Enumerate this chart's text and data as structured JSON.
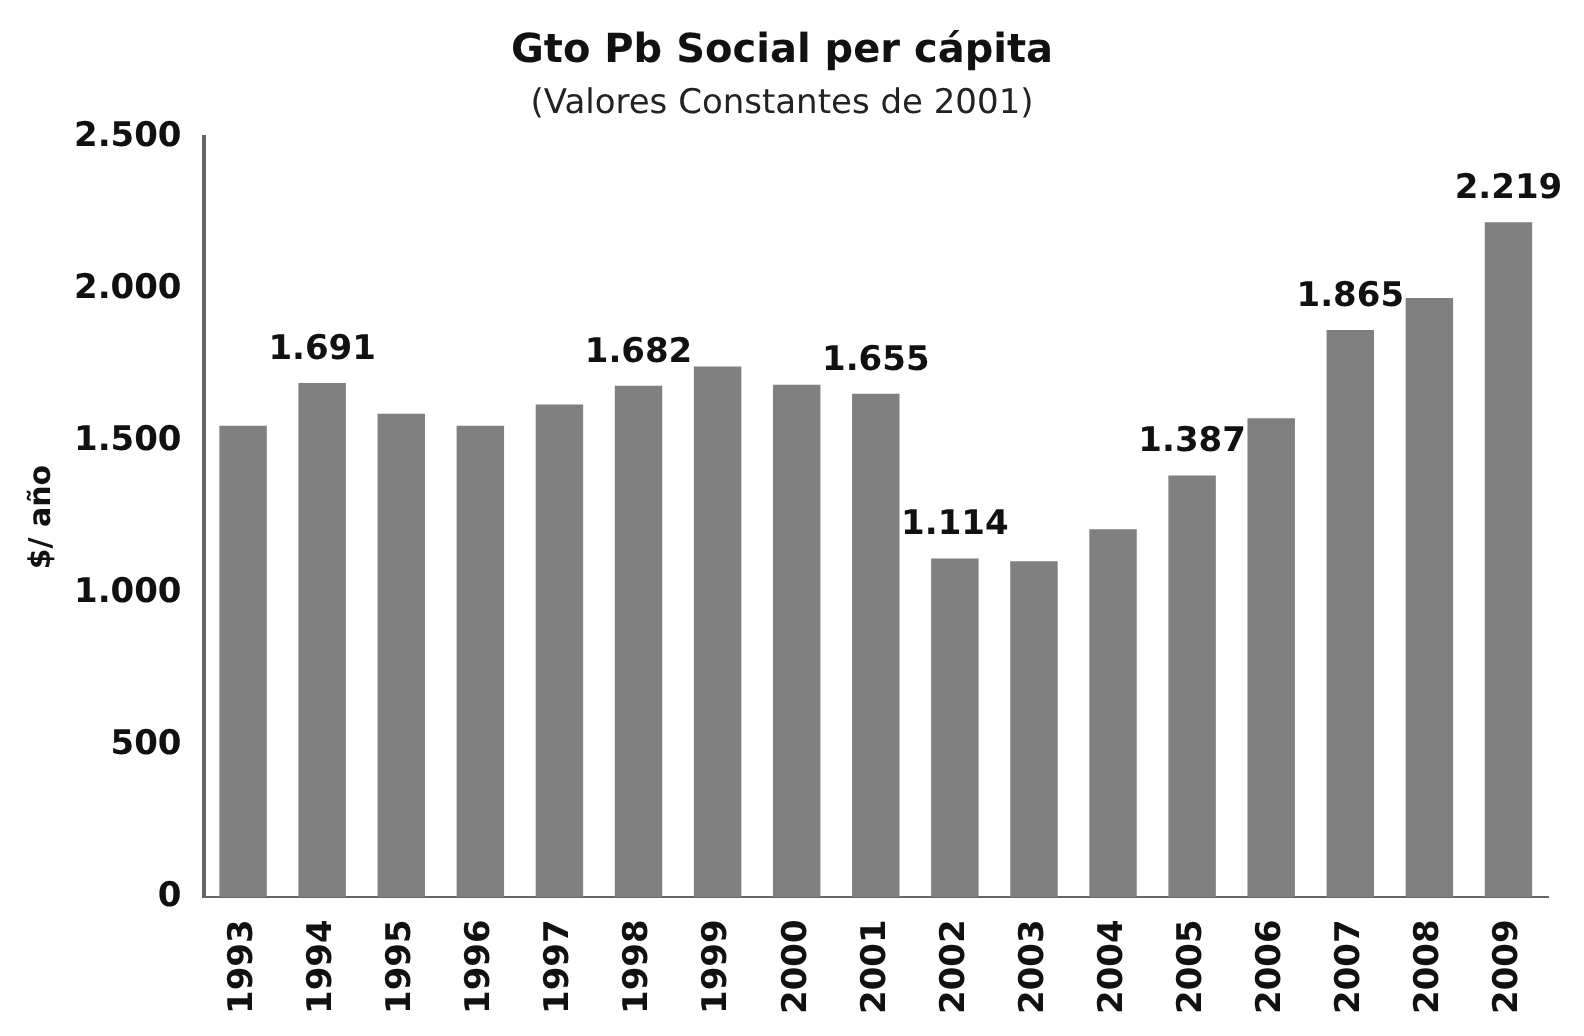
{
  "chart_data": {
    "type": "bar",
    "title": "Gto Pb Social per cápita",
    "subtitle": "(Valores Constantes de 2001)",
    "ylabel": "$/ año",
    "categories": [
      "1993",
      "1994",
      "1995",
      "1996",
      "1997",
      "1998",
      "1999",
      "2000",
      "2001",
      "2002",
      "2003",
      "2004",
      "2005",
      "2006",
      "2007",
      "2008",
      "2009"
    ],
    "values": [
      1550,
      1691,
      1590,
      1550,
      1620,
      1682,
      1745,
      1685,
      1655,
      1114,
      1105,
      1210,
      1387,
      1575,
      1865,
      1970,
      2219
    ],
    "value_labels": [
      null,
      "1.691",
      null,
      null,
      null,
      "1.682",
      null,
      null,
      "1.655",
      "1.114",
      null,
      null,
      "1.387",
      null,
      "1.865",
      null,
      "2.219"
    ],
    "color": "#808080",
    "ylim": [
      0,
      2500
    ],
    "yticks": [
      {
        "value": 0,
        "label": "0"
      },
      {
        "value": 500,
        "label": "500"
      },
      {
        "value": 1000,
        "label": "1.000"
      },
      {
        "value": 1500,
        "label": "1.500"
      },
      {
        "value": 2000,
        "label": "2.000"
      },
      {
        "value": 2500,
        "label": "2.500"
      }
    ],
    "grid": false,
    "legend": false
  }
}
